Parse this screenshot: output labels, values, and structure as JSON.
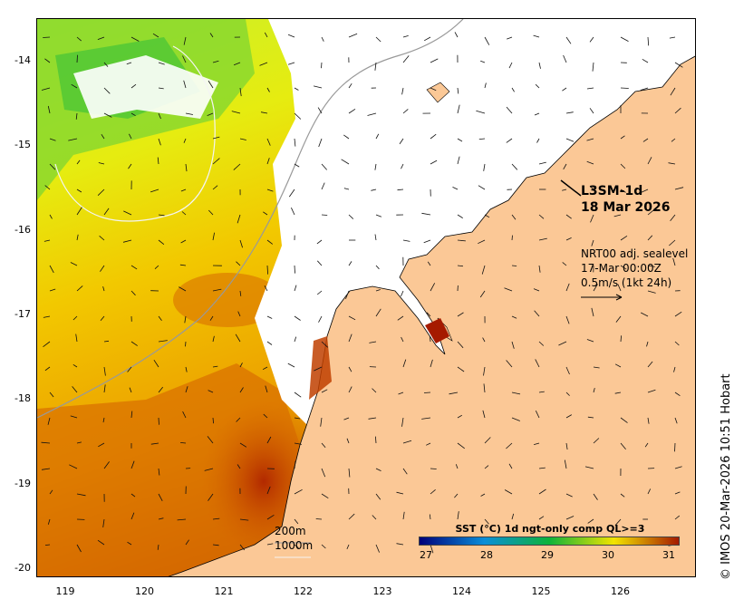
{
  "map": {
    "y_labels": [
      "-14",
      "-15",
      "-16",
      "-17",
      "-18",
      "-19",
      "-20"
    ],
    "x_labels": [
      "119",
      "120",
      "121",
      "122",
      "123",
      "124",
      "125",
      "126"
    ],
    "product_line1": "L3SM-1d",
    "product_line2": "18 Mar 2026",
    "vector_line1": "NRT00 adj. sealevel",
    "vector_line2": "17-Mar 00:00Z",
    "vector_line3": "0.5m/s (1kt 24h)",
    "contour_200": "200m",
    "contour_1000": "1000m",
    "credit": "© IMOS 20-Mar-2026 10:51 Hobart",
    "colorbar_title": "SST (°C) 1d ngt-only comp QL>=3",
    "colorbar_ticks": [
      "27",
      "28",
      "29",
      "30",
      "31"
    ],
    "land_color": "#fbc896",
    "colors": {
      "c27": "#00007a",
      "c28": "#0a8ed8",
      "c29": "#0db33a",
      "c30": "#f2e400",
      "c31": "#a51a00"
    }
  }
}
